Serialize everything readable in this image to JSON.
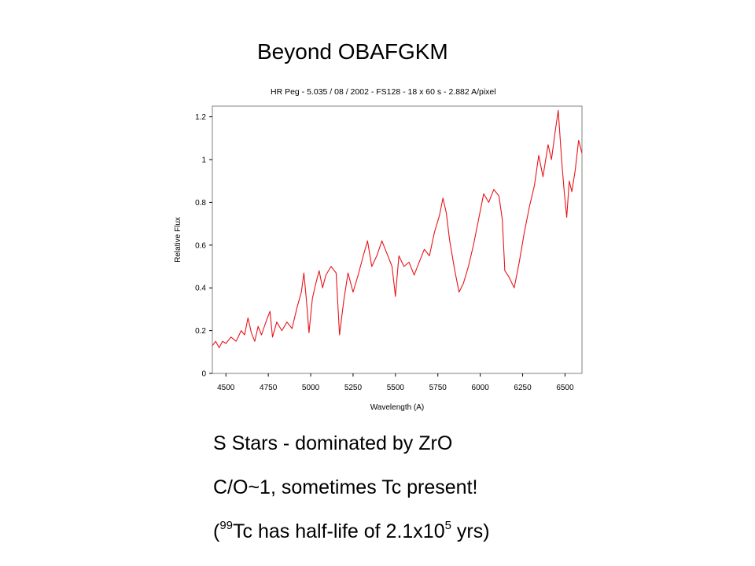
{
  "slide": {
    "title": "Beyond OBAFGKM",
    "bullets": {
      "line1": "S Stars - dominated by ZrO",
      "line2": "C/O~1, sometimes Tc present!",
      "line3": {
        "open_paren": "(",
        "isotope_mass": "99",
        "text_a": "Tc has half-life of 2.1x10",
        "exponent": "5",
        "text_b": " yrs)"
      }
    }
  },
  "chart_data": {
    "type": "line",
    "title": "HR Peg - 5.035 / 08 / 2002 - FS128 - 18 x 60 s - 2.882 A/pixel",
    "xlabel": "Wavelength (A)",
    "ylabel": "Relative Flux",
    "xlim": [
      4420,
      6600
    ],
    "ylim": [
      0,
      1.25
    ],
    "xticks": [
      4500,
      4750,
      5000,
      5250,
      5500,
      5750,
      6000,
      6250,
      6500
    ],
    "yticks": [
      0,
      0.2,
      0.4,
      0.6,
      0.8,
      1,
      1.2
    ],
    "ytick_labels": [
      "0",
      "0.2",
      "0.4",
      "0.6",
      "0.8",
      "1",
      "1.2"
    ],
    "grid": false,
    "series": [
      {
        "color": "#e8141b",
        "points": [
          [
            4420,
            0.13
          ],
          [
            4440,
            0.15
          ],
          [
            4460,
            0.12
          ],
          [
            4480,
            0.15
          ],
          [
            4500,
            0.14
          ],
          [
            4530,
            0.17
          ],
          [
            4560,
            0.15
          ],
          [
            4590,
            0.2
          ],
          [
            4610,
            0.18
          ],
          [
            4630,
            0.26
          ],
          [
            4650,
            0.19
          ],
          [
            4670,
            0.15
          ],
          [
            4690,
            0.22
          ],
          [
            4710,
            0.18
          ],
          [
            4740,
            0.25
          ],
          [
            4760,
            0.29
          ],
          [
            4775,
            0.17
          ],
          [
            4800,
            0.24
          ],
          [
            4830,
            0.2
          ],
          [
            4860,
            0.24
          ],
          [
            4890,
            0.21
          ],
          [
            4920,
            0.31
          ],
          [
            4945,
            0.38
          ],
          [
            4960,
            0.47
          ],
          [
            4975,
            0.34
          ],
          [
            4990,
            0.19
          ],
          [
            5010,
            0.35
          ],
          [
            5030,
            0.42
          ],
          [
            5050,
            0.48
          ],
          [
            5070,
            0.4
          ],
          [
            5090,
            0.46
          ],
          [
            5120,
            0.5
          ],
          [
            5150,
            0.47
          ],
          [
            5170,
            0.18
          ],
          [
            5195,
            0.34
          ],
          [
            5220,
            0.47
          ],
          [
            5250,
            0.38
          ],
          [
            5280,
            0.46
          ],
          [
            5310,
            0.55
          ],
          [
            5335,
            0.62
          ],
          [
            5360,
            0.5
          ],
          [
            5390,
            0.55
          ],
          [
            5420,
            0.62
          ],
          [
            5450,
            0.56
          ],
          [
            5480,
            0.5
          ],
          [
            5500,
            0.36
          ],
          [
            5520,
            0.55
          ],
          [
            5550,
            0.5
          ],
          [
            5580,
            0.52
          ],
          [
            5610,
            0.46
          ],
          [
            5640,
            0.52
          ],
          [
            5670,
            0.58
          ],
          [
            5700,
            0.55
          ],
          [
            5730,
            0.66
          ],
          [
            5760,
            0.74
          ],
          [
            5780,
            0.82
          ],
          [
            5800,
            0.75
          ],
          [
            5820,
            0.62
          ],
          [
            5850,
            0.48
          ],
          [
            5875,
            0.38
          ],
          [
            5900,
            0.42
          ],
          [
            5930,
            0.5
          ],
          [
            5960,
            0.6
          ],
          [
            5990,
            0.72
          ],
          [
            6020,
            0.84
          ],
          [
            6050,
            0.8
          ],
          [
            6080,
            0.86
          ],
          [
            6110,
            0.83
          ],
          [
            6130,
            0.72
          ],
          [
            6145,
            0.48
          ],
          [
            6170,
            0.45
          ],
          [
            6200,
            0.4
          ],
          [
            6230,
            0.52
          ],
          [
            6260,
            0.66
          ],
          [
            6290,
            0.78
          ],
          [
            6320,
            0.88
          ],
          [
            6345,
            1.02
          ],
          [
            6370,
            0.92
          ],
          [
            6400,
            1.07
          ],
          [
            6420,
            1.0
          ],
          [
            6440,
            1.12
          ],
          [
            6460,
            1.23
          ],
          [
            6480,
            1.0
          ],
          [
            6495,
            0.85
          ],
          [
            6510,
            0.73
          ],
          [
            6525,
            0.9
          ],
          [
            6540,
            0.85
          ],
          [
            6560,
            0.95
          ],
          [
            6580,
            1.09
          ],
          [
            6600,
            1.03
          ]
        ]
      }
    ]
  }
}
